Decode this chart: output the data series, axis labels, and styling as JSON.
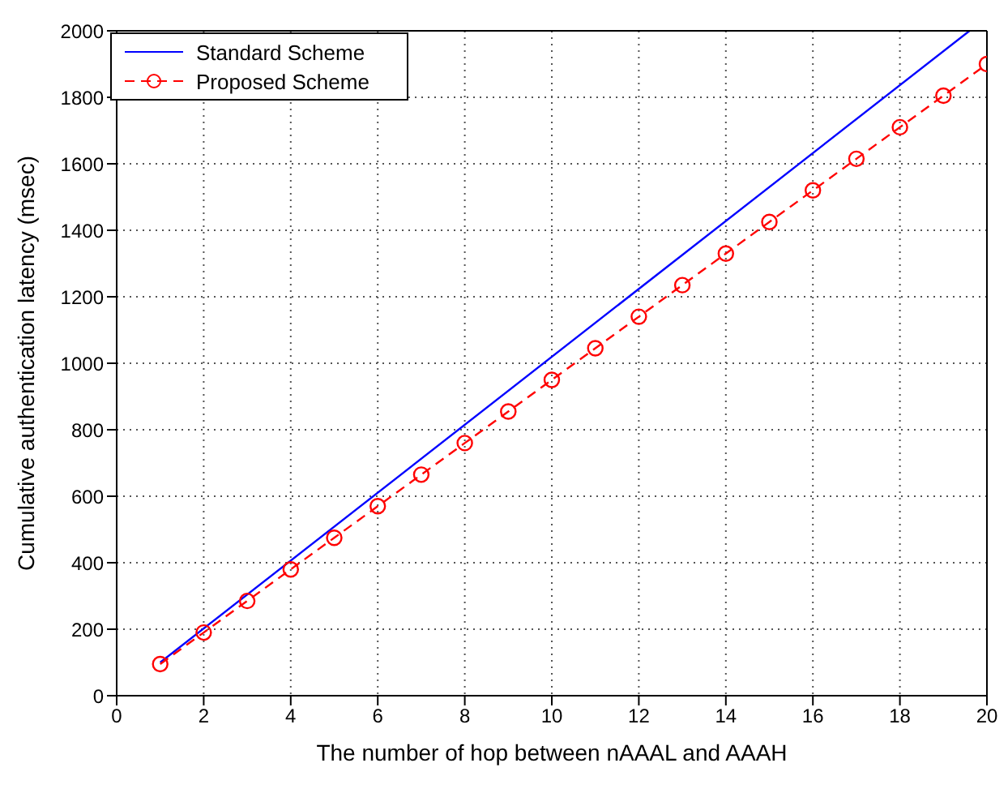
{
  "chart_data": {
    "type": "line",
    "xlabel": "The number of hop between nAAAL and AAAH",
    "ylabel": "Cumulative authentication latency (msec)",
    "xlim": [
      0,
      20
    ],
    "xticks": [
      0,
      2,
      4,
      6,
      8,
      10,
      12,
      14,
      16,
      18,
      20
    ],
    "ylim": [
      0,
      2000
    ],
    "yticks": [
      0,
      200,
      400,
      600,
      800,
      1000,
      1200,
      1400,
      1600,
      1800,
      2000
    ],
    "grid": true,
    "legend": "top left",
    "series": [
      {
        "name": "Standard Scheme",
        "color": "#0000ff",
        "x": [
          1,
          19.6
        ],
        "values": [
          100,
          2000
        ],
        "marker": "none",
        "line_style": "solid"
      },
      {
        "name": "Proposed Scheme",
        "color": "#ff0000",
        "x": [
          1,
          2,
          3,
          4,
          5,
          6,
          7,
          8,
          9,
          10,
          11,
          12,
          13,
          14,
          15,
          16,
          17,
          18,
          19,
          20
        ],
        "values": [
          95,
          190,
          285,
          380,
          475,
          570,
          665,
          760,
          855,
          950,
          1045,
          1140,
          1235,
          1330,
          1425,
          1520,
          1615,
          1710,
          1805,
          1900
        ],
        "marker": "circle",
        "line_style": "dashed"
      }
    ]
  }
}
